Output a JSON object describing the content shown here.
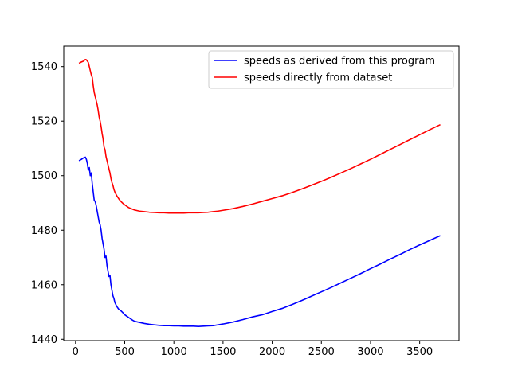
{
  "chart_data": {
    "type": "line",
    "title": "",
    "xlabel": "",
    "ylabel": "",
    "xlim": [
      -120,
      3900
    ],
    "ylim": [
      1439.5,
      1547.5
    ],
    "xticks": [
      0,
      500,
      1000,
      1500,
      2000,
      2500,
      3000,
      3500
    ],
    "yticks": [
      1440,
      1460,
      1480,
      1500,
      1520,
      1540
    ],
    "grid": false,
    "legend_position": "upper right",
    "series": [
      {
        "name": "speeds as derived from this program",
        "color": "#0000ff",
        "x": [
          35,
          60,
          80,
          100,
          110,
          120,
          130,
          140,
          150,
          160,
          170,
          180,
          190,
          200,
          210,
          220,
          230,
          240,
          250,
          260,
          270,
          280,
          290,
          300,
          310,
          320,
          330,
          340,
          350,
          360,
          370,
          380,
          390,
          400,
          420,
          440,
          460,
          480,
          500,
          520,
          540,
          560,
          580,
          600,
          650,
          700,
          750,
          800,
          850,
          900,
          950,
          1000,
          1050,
          1100,
          1150,
          1200,
          1250,
          1300,
          1350,
          1400,
          1450,
          1500,
          1600,
          1700,
          1800,
          1900,
          2000,
          2100,
          2200,
          2300,
          2400,
          2500,
          2600,
          2700,
          2800,
          2900,
          3000,
          3100,
          3200,
          3300,
          3400,
          3500,
          3600,
          3710
        ],
        "values": [
          1505.5,
          1506.0,
          1506.5,
          1506.8,
          1506.0,
          1504.5,
          1502.0,
          1503.0,
          1500.0,
          1501.0,
          1497.0,
          1494.0,
          1491.0,
          1490.5,
          1489.0,
          1487.0,
          1485.0,
          1483.0,
          1482.0,
          1480.0,
          1477.0,
          1475.0,
          1473.0,
          1470.0,
          1470.5,
          1467.0,
          1465.0,
          1463.0,
          1463.5,
          1460.0,
          1458.0,
          1456.0,
          1455.0,
          1453.5,
          1452.0,
          1451.0,
          1450.5,
          1449.8,
          1449.0,
          1448.5,
          1448.0,
          1447.5,
          1447.0,
          1446.6,
          1446.2,
          1445.8,
          1445.5,
          1445.3,
          1445.1,
          1445.0,
          1445.0,
          1444.9,
          1444.9,
          1444.8,
          1444.8,
          1444.8,
          1444.7,
          1444.8,
          1444.9,
          1445.0,
          1445.3,
          1445.6,
          1446.3,
          1447.2,
          1448.2,
          1449.0,
          1450.2,
          1451.3,
          1452.7,
          1454.2,
          1455.8,
          1457.4,
          1459.0,
          1460.7,
          1462.4,
          1464.1,
          1465.9,
          1467.6,
          1469.4,
          1471.1,
          1472.9,
          1474.6,
          1476.2,
          1478.0
        ]
      },
      {
        "name": "speeds directly from dataset",
        "color": "#ff0000",
        "x": [
          35,
          60,
          80,
          100,
          110,
          120,
          130,
          140,
          150,
          160,
          170,
          180,
          190,
          200,
          210,
          220,
          230,
          240,
          250,
          260,
          270,
          280,
          290,
          300,
          310,
          320,
          330,
          340,
          350,
          360,
          370,
          380,
          390,
          400,
          420,
          440,
          460,
          480,
          500,
          520,
          540,
          560,
          580,
          600,
          650,
          700,
          750,
          800,
          850,
          900,
          950,
          1000,
          1050,
          1100,
          1150,
          1200,
          1250,
          1300,
          1350,
          1400,
          1450,
          1500,
          1600,
          1700,
          1800,
          1900,
          2000,
          2100,
          2200,
          2300,
          2400,
          2500,
          2600,
          2700,
          2800,
          2900,
          3000,
          3100,
          3200,
          3300,
          3400,
          3500,
          3600,
          3710
        ],
        "values": [
          1541.2,
          1541.7,
          1542.0,
          1542.6,
          1542.5,
          1542.0,
          1541.5,
          1540.0,
          1538.5,
          1537.0,
          1536.0,
          1533.0,
          1530.5,
          1529.0,
          1527.5,
          1526.0,
          1524.0,
          1521.5,
          1520.0,
          1518.0,
          1515.5,
          1513.5,
          1510.5,
          1509.5,
          1507.0,
          1505.5,
          1504.0,
          1502.5,
          1501.0,
          1499.0,
          1497.5,
          1496.5,
          1495.0,
          1494.0,
          1492.6,
          1491.5,
          1490.6,
          1489.9,
          1489.3,
          1488.8,
          1488.3,
          1488.0,
          1487.7,
          1487.4,
          1487.0,
          1486.8,
          1486.6,
          1486.5,
          1486.4,
          1486.4,
          1486.3,
          1486.3,
          1486.3,
          1486.3,
          1486.4,
          1486.4,
          1486.4,
          1486.5,
          1486.6,
          1486.8,
          1487.0,
          1487.3,
          1487.9,
          1488.7,
          1489.6,
          1490.6,
          1491.6,
          1492.6,
          1493.8,
          1495.1,
          1496.5,
          1497.9,
          1499.4,
          1501.0,
          1502.6,
          1504.3,
          1506.0,
          1507.8,
          1509.6,
          1511.4,
          1513.2,
          1515.0,
          1516.8,
          1518.7
        ]
      }
    ]
  }
}
